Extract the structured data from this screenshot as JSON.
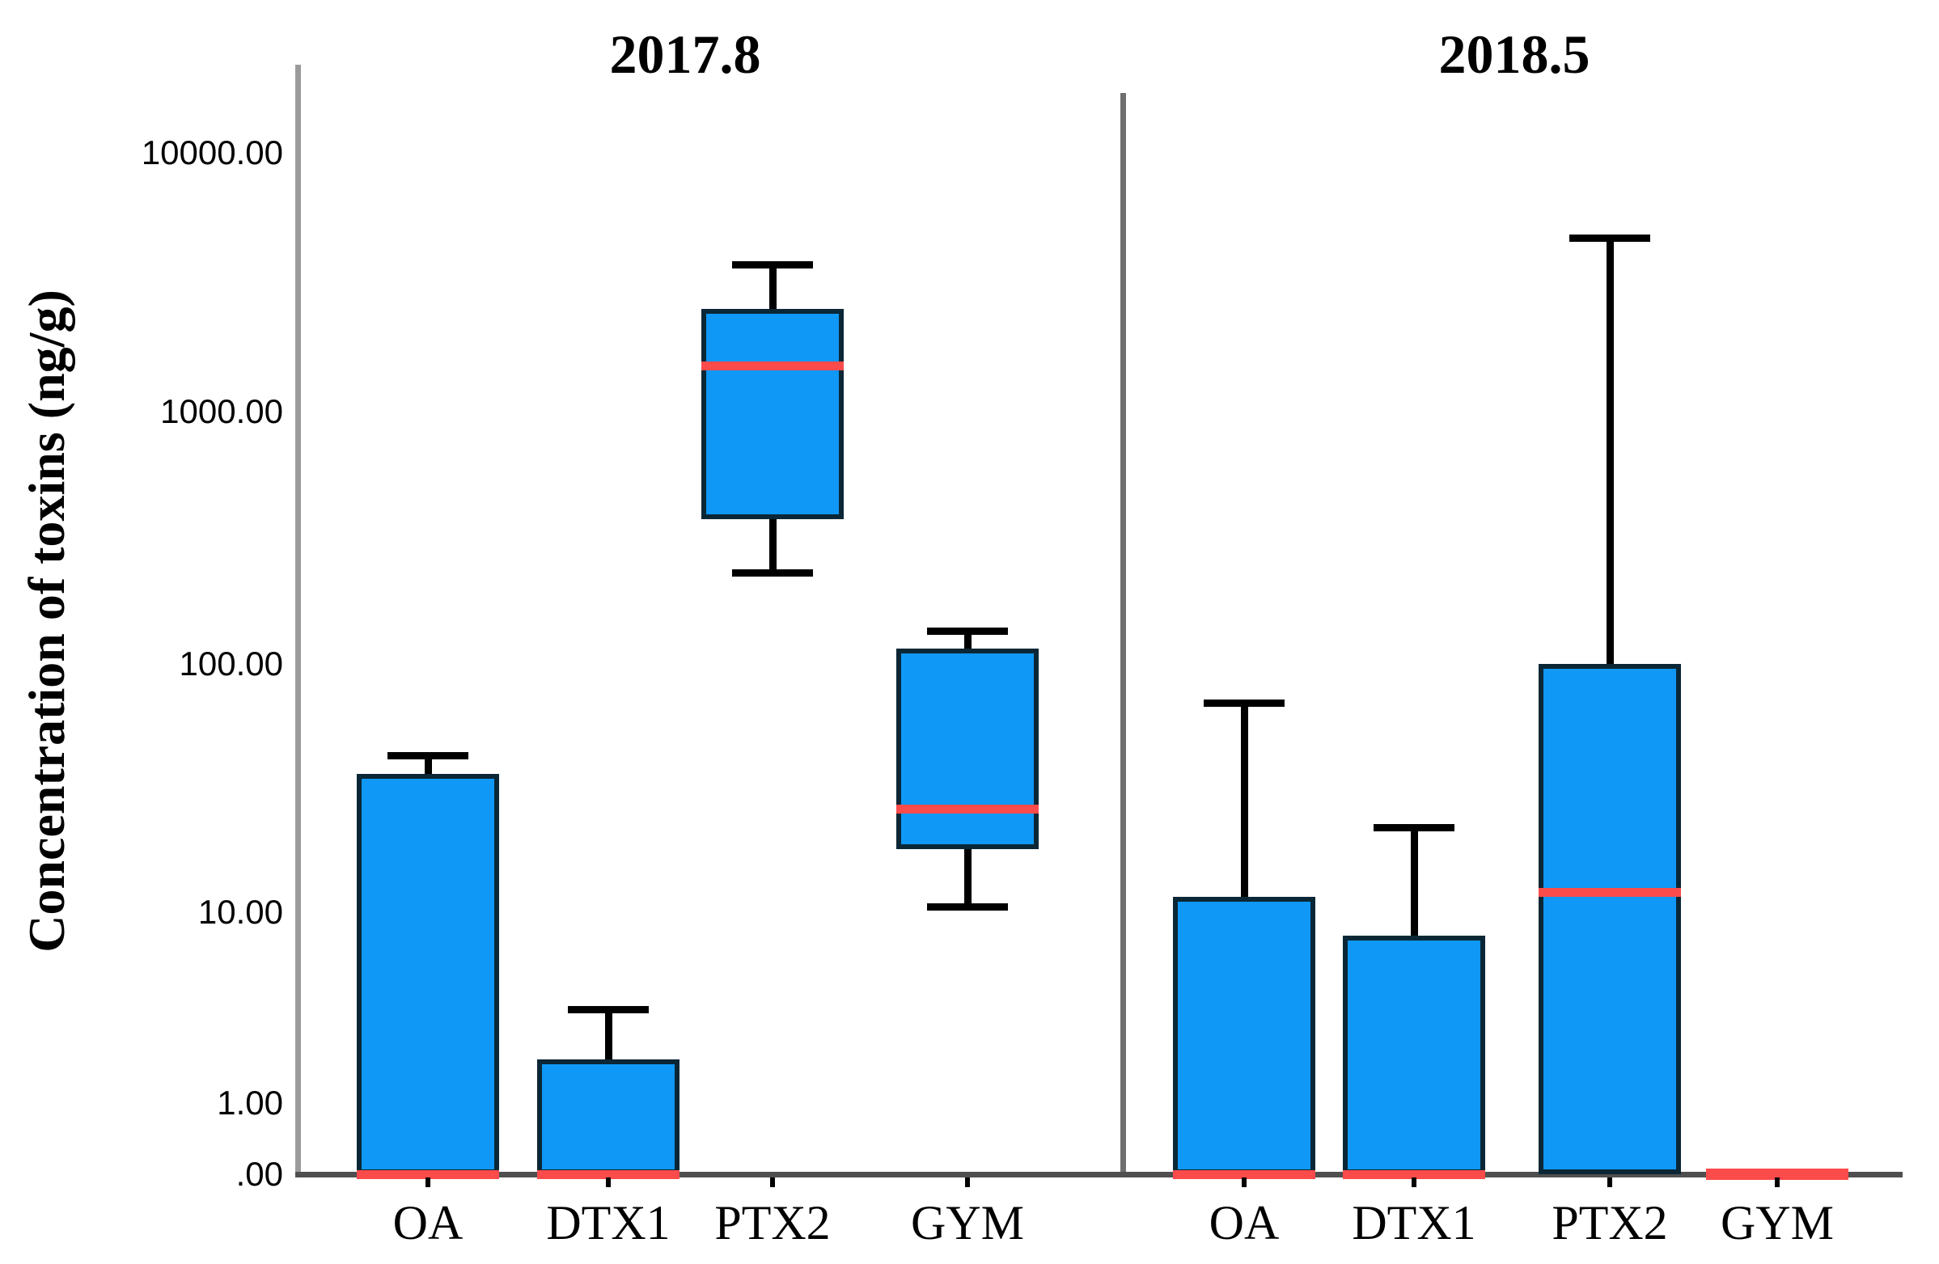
{
  "chart_data": {
    "type": "boxplot",
    "title": "",
    "ylabel": "Concentration of toxins (ng/g)",
    "xlabel": "",
    "yscale": "logarithmic with zero baseline",
    "legend": "none",
    "grid": false,
    "ytick": [
      {
        "value": 10000,
        "label": "10000.00"
      },
      {
        "value": 1000,
        "label": "1000.00"
      },
      {
        "value": 100,
        "label": "100.00"
      },
      {
        "value": 10,
        "label": "10.00"
      },
      {
        "value": 1,
        "label": "1.00"
      },
      {
        "value": 0,
        "label": ".00"
      }
    ],
    "categories": [
      "OA",
      "DTX1",
      "PTX2",
      "GYM"
    ],
    "panels": [
      {
        "title": "2017.8",
        "boxes": [
          {
            "category": "OA",
            "min": 0,
            "q1": 0,
            "median": 0,
            "q3": 36,
            "max": 43
          },
          {
            "category": "DTX1",
            "min": 0,
            "q1": 0,
            "median": 0,
            "q3": 1.7,
            "max": 3.1
          },
          {
            "category": "PTX2",
            "min": 230,
            "q1": 375,
            "median": 1500,
            "q3": 2500,
            "max": 3700
          },
          {
            "category": "GYM",
            "min": 10.5,
            "q1": 18,
            "median": 26,
            "q3": 115,
            "max": 135
          }
        ]
      },
      {
        "title": "2018.5",
        "boxes": [
          {
            "category": "OA",
            "min": 0,
            "q1": 0,
            "median": 0,
            "q3": 11.5,
            "max": 70
          },
          {
            "category": "DTX1",
            "min": 0,
            "q1": 0,
            "median": 0,
            "q3": 7.5,
            "max": 22
          },
          {
            "category": "PTX2",
            "min": 0,
            "q1": 0,
            "median": 12,
            "q3": 100,
            "max": 4700
          },
          {
            "category": "GYM",
            "min": 0,
            "q1": 0,
            "median": 0,
            "q3": 0,
            "max": 0
          }
        ]
      }
    ],
    "colors": {
      "box_fill": "#0f98f6",
      "box_border": "#0b2736",
      "median": "#fb4b4b",
      "whisker": "#000000",
      "y_axis": "#9b9b9b",
      "panel_divider": "#6f6f6f",
      "x_axis": "#4f4f4f",
      "text": "#000000"
    }
  }
}
